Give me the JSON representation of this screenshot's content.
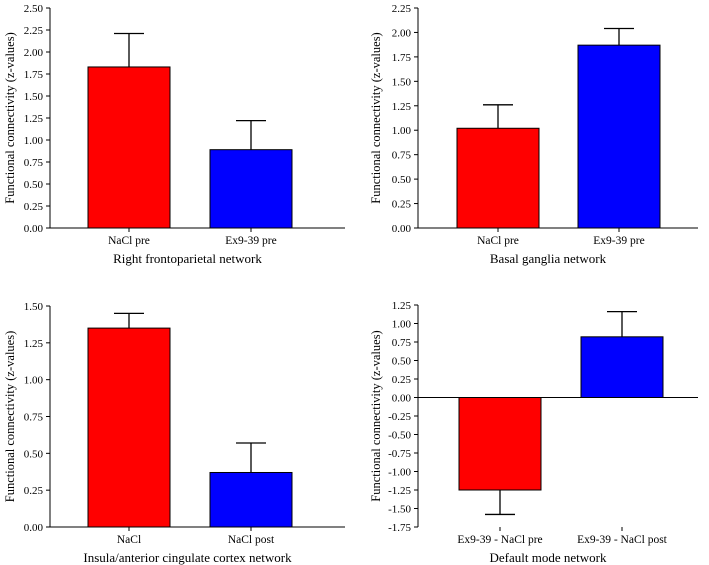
{
  "figure": {
    "colors": {
      "red": "#ff0000",
      "blue": "#0000ff",
      "axis": "#000000"
    }
  },
  "chart_data": [
    {
      "type": "bar",
      "title": "",
      "xlabel": "Right frontoparietal network",
      "ylabel": "Functional connectivity (z-values)",
      "categories": [
        "NaCl pre",
        "Ex9-39 pre"
      ],
      "values": [
        1.83,
        0.89
      ],
      "errors": [
        0.38,
        0.33
      ],
      "colors": [
        "#ff0000",
        "#0000ff"
      ],
      "ylim": [
        0,
        2.5
      ],
      "yticks": [
        "0.00",
        "0.25",
        "0.50",
        "0.75",
        "1.00",
        "1.25",
        "1.50",
        "1.75",
        "2.00",
        "2.25",
        "2.50"
      ]
    },
    {
      "type": "bar",
      "title": "",
      "xlabel": "Basal ganglia network",
      "ylabel": "Functional connectivity (z-values)",
      "categories": [
        "NaCl pre",
        "Ex9-39 pre"
      ],
      "values": [
        1.02,
        1.87
      ],
      "errors": [
        0.24,
        0.17
      ],
      "colors": [
        "#ff0000",
        "#0000ff"
      ],
      "ylim": [
        0,
        2.25
      ],
      "yticks": [
        "0.00",
        "0.25",
        "0.50",
        "0.75",
        "1.00",
        "1.25",
        "1.50",
        "1.75",
        "2.00",
        "2.25"
      ]
    },
    {
      "type": "bar",
      "title": "",
      "xlabel": "Insula/anterior cingulate cortex network",
      "ylabel": "Functional connectivity (z-values)",
      "categories": [
        "NaCl",
        "NaCl post"
      ],
      "values": [
        1.35,
        0.37
      ],
      "errors": [
        0.1,
        0.2
      ],
      "colors": [
        "#ff0000",
        "#0000ff"
      ],
      "ylim": [
        0,
        1.5
      ],
      "yticks": [
        "0.00",
        "0.25",
        "0.50",
        "0.75",
        "1.00",
        "1.25",
        "1.50"
      ]
    },
    {
      "type": "bar",
      "title": "",
      "xlabel": "Default mode network",
      "ylabel": "Functional connectivity (z-values)",
      "categories": [
        "Ex9-39 - NaCl pre",
        "Ex9-39 - NaCl post"
      ],
      "values": [
        -1.25,
        0.82
      ],
      "errors": [
        0.33,
        0.34
      ],
      "colors": [
        "#ff0000",
        "#0000ff"
      ],
      "ylim": [
        -1.75,
        1.25
      ],
      "yticks": [
        "-1.75",
        "-1.50",
        "-1.25",
        "-1.00",
        "-0.75",
        "-0.50",
        "-0.25",
        "0.00",
        "0.25",
        "0.50",
        "0.75",
        "1.00",
        "1.25"
      ]
    }
  ]
}
